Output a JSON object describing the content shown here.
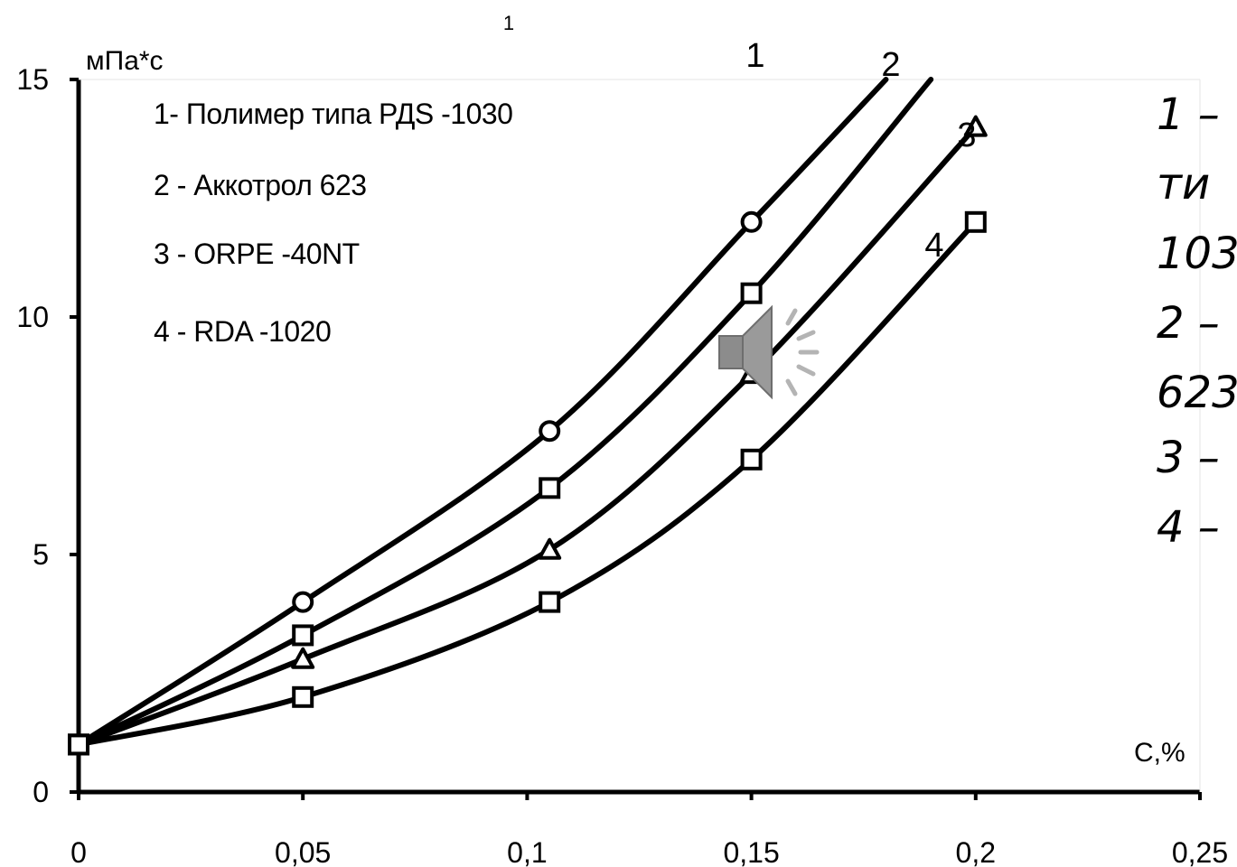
{
  "slide": {
    "top_number": "1"
  },
  "side_text": {
    "lines": [
      "1 –",
      "ти",
      "103",
      "2 –",
      "623",
      "3 –",
      "4 –"
    ]
  },
  "audio": {
    "icon": "speaker-icon"
  },
  "chart_data": {
    "type": "line",
    "xlabel": "С,%",
    "ylabel": "мПа*с",
    "xlim": [
      0,
      0.25
    ],
    "ylim": [
      0,
      15
    ],
    "x_ticks": [
      0,
      0.05,
      0.1,
      0.15,
      0.2,
      0.25
    ],
    "x_tick_labels": [
      "0",
      "0,05",
      "0,1",
      "0,15",
      "0,2",
      "0,25"
    ],
    "y_ticks": [
      0,
      5,
      10,
      15
    ],
    "y_tick_labels": [
      "0",
      "5",
      "10",
      "15"
    ],
    "grid": false,
    "legend_position": "top-left",
    "legend": [
      "1- Полимер типа РДS -1030",
      "2 - Аккотрол 623",
      "3 - ORPE -40NT",
      "4 - RDA -1020"
    ],
    "series": [
      {
        "label": "1",
        "marker": "circle",
        "x": [
          0,
          0.05,
          0.105,
          0.15
        ],
        "y": [
          1,
          4,
          7.6,
          12
        ],
        "end": [
          0.18,
          15
        ]
      },
      {
        "label": "2",
        "marker": "square",
        "x": [
          0,
          0.05,
          0.105,
          0.15
        ],
        "y": [
          1,
          3.3,
          6.4,
          10.5
        ],
        "end": [
          0.19,
          15
        ]
      },
      {
        "label": "3",
        "marker": "triangle",
        "x": [
          0,
          0.05,
          0.105,
          0.15,
          0.2
        ],
        "y": [
          1,
          2.8,
          5.1,
          8.8,
          14
        ]
      },
      {
        "label": "4",
        "marker": "square",
        "x": [
          0,
          0.05,
          0.105,
          0.15,
          0.2
        ],
        "y": [
          1,
          2,
          4,
          7,
          12
        ]
      }
    ]
  }
}
